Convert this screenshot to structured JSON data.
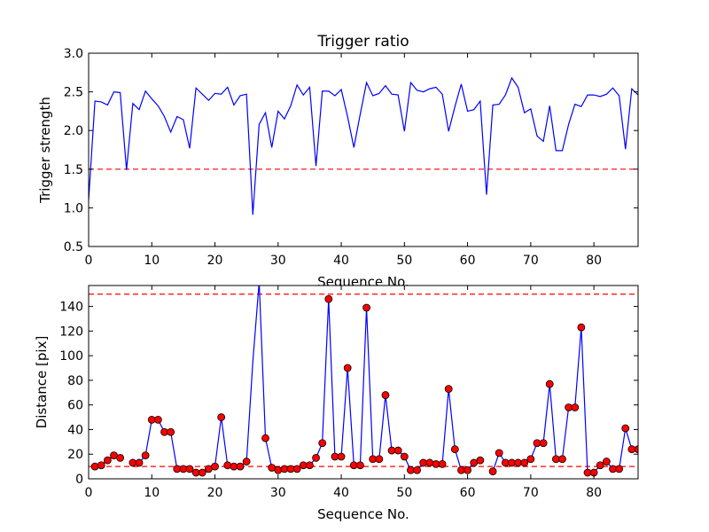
{
  "chart_data": [
    {
      "type": "line",
      "title": "Trigger ratio",
      "xlabel": "Sequence No.",
      "ylabel": "Trigger strength",
      "xlim": [
        0,
        87
      ],
      "ylim": [
        0.5,
        3.0
      ],
      "xticks": [
        0,
        10,
        20,
        30,
        40,
        50,
        60,
        70,
        80
      ],
      "yticks": [
        0.5,
        1.0,
        1.5,
        2.0,
        2.5,
        3.0
      ],
      "ytick_labels": [
        "0.5",
        "1.0",
        "1.5",
        "2.0",
        "2.5",
        "3.0"
      ],
      "grid": false,
      "colors": {
        "line": "#0000ff",
        "threshold": "#ff0000"
      },
      "threshold_lines": [
        1.5
      ],
      "series": [
        {
          "x": [
            0,
            1,
            2,
            3,
            4,
            5,
            6,
            7,
            8,
            9,
            10,
            11,
            12,
            13,
            14,
            15,
            16,
            17,
            18,
            19,
            20,
            21,
            22,
            23,
            24,
            25,
            26,
            27,
            28,
            29,
            30,
            31,
            32,
            33,
            34,
            35,
            36,
            37,
            38,
            39,
            40,
            41,
            42,
            43,
            44,
            45,
            46,
            47,
            48,
            49,
            50,
            51,
            52,
            53,
            54,
            55,
            56,
            57,
            58,
            59,
            60,
            61,
            62,
            63,
            64,
            65,
            66,
            67,
            68,
            69,
            70,
            71,
            72,
            73,
            74,
            75,
            76,
            77,
            78,
            79,
            80,
            81,
            82,
            83,
            84,
            85,
            86,
            87
          ],
          "values": [
            1.1,
            2.38,
            2.37,
            2.33,
            2.5,
            2.49,
            1.49,
            2.35,
            2.27,
            2.51,
            2.41,
            2.32,
            2.18,
            1.98,
            2.18,
            2.14,
            1.77,
            2.55,
            2.47,
            2.39,
            2.48,
            2.47,
            2.56,
            2.33,
            2.45,
            2.47,
            0.91,
            2.08,
            2.23,
            1.78,
            2.25,
            2.15,
            2.32,
            2.59,
            2.46,
            2.56,
            1.54,
            2.51,
            2.51,
            2.45,
            2.53,
            2.18,
            1.78,
            2.21,
            2.62,
            2.45,
            2.48,
            2.58,
            2.47,
            2.46,
            1.99,
            2.62,
            2.52,
            2.5,
            2.54,
            2.56,
            2.47,
            1.99,
            2.31,
            2.6,
            2.25,
            2.27,
            2.38,
            1.17,
            2.33,
            2.34,
            2.46,
            2.68,
            2.56,
            2.23,
            2.28,
            1.93,
            1.86,
            2.32,
            1.74,
            1.74,
            2.08,
            2.34,
            2.31,
            2.46,
            2.46,
            2.44,
            2.47,
            2.55,
            2.45,
            1.76,
            2.54,
            2.46
          ]
        }
      ]
    },
    {
      "type": "line",
      "title": "",
      "xlabel": "Sequence No.",
      "ylabel": "Distance [pix]",
      "xlim": [
        0,
        87
      ],
      "ylim": [
        0,
        157
      ],
      "xticks": [
        0,
        10,
        20,
        30,
        40,
        50,
        60,
        70,
        80
      ],
      "yticks": [
        0,
        20,
        40,
        60,
        80,
        100,
        120,
        140
      ],
      "grid": false,
      "colors": {
        "line": "#0000ff",
        "marker": "#ff0000",
        "threshold": "#ff0000"
      },
      "threshold_lines": [
        10,
        150
      ],
      "series": [
        {
          "x": [
            1,
            2,
            3,
            4,
            5,
            6,
            7,
            8,
            9,
            10,
            11,
            12,
            13,
            14,
            15,
            16,
            17,
            18,
            19,
            20,
            21,
            22,
            23,
            24,
            25,
            26,
            27,
            28,
            29,
            30,
            31,
            32,
            33,
            34,
            35,
            36,
            37,
            38,
            39,
            40,
            41,
            42,
            43,
            44,
            45,
            46,
            47,
            48,
            49,
            50,
            51,
            52,
            53,
            54,
            55,
            56,
            57,
            58,
            59,
            60,
            61,
            62,
            63,
            64,
            65,
            66,
            67,
            68,
            69,
            70,
            71,
            72,
            73,
            74,
            75,
            76,
            77,
            78,
            79,
            80,
            81,
            82,
            83,
            84,
            85,
            86,
            87
          ],
          "values": [
            10,
            11,
            15,
            19,
            17,
            null,
            13,
            13,
            19,
            48,
            48,
            38,
            38,
            8,
            8,
            8,
            5,
            5,
            8,
            10,
            50,
            11,
            10,
            10,
            14,
            95,
            160,
            33,
            9,
            7,
            8,
            8,
            8,
            11,
            11,
            17,
            29,
            146,
            18,
            18,
            90,
            11,
            11,
            139,
            16,
            16,
            68,
            23,
            23,
            18,
            7,
            7,
            13,
            13,
            12,
            12,
            73,
            24,
            7,
            7,
            13,
            15,
            null,
            6,
            21,
            13,
            13,
            13,
            13,
            16,
            29,
            29,
            77,
            16,
            16,
            58,
            58,
            123,
            5,
            5,
            11,
            14,
            8,
            8,
            41,
            24,
            24
          ],
          "marker_flags": [
            1,
            1,
            1,
            1,
            1,
            0,
            1,
            1,
            1,
            1,
            1,
            1,
            1,
            1,
            1,
            1,
            1,
            1,
            1,
            1,
            1,
            1,
            1,
            1,
            1,
            0,
            0,
            1,
            1,
            1,
            1,
            1,
            1,
            1,
            1,
            1,
            1,
            1,
            1,
            1,
            1,
            1,
            1,
            1,
            1,
            1,
            1,
            1,
            1,
            1,
            1,
            1,
            1,
            1,
            1,
            1,
            1,
            1,
            1,
            1,
            1,
            1,
            0,
            1,
            1,
            1,
            1,
            1,
            1,
            1,
            1,
            1,
            1,
            1,
            1,
            1,
            1,
            1,
            1,
            1,
            1,
            1,
            1,
            1,
            1,
            1,
            1
          ]
        }
      ]
    }
  ]
}
